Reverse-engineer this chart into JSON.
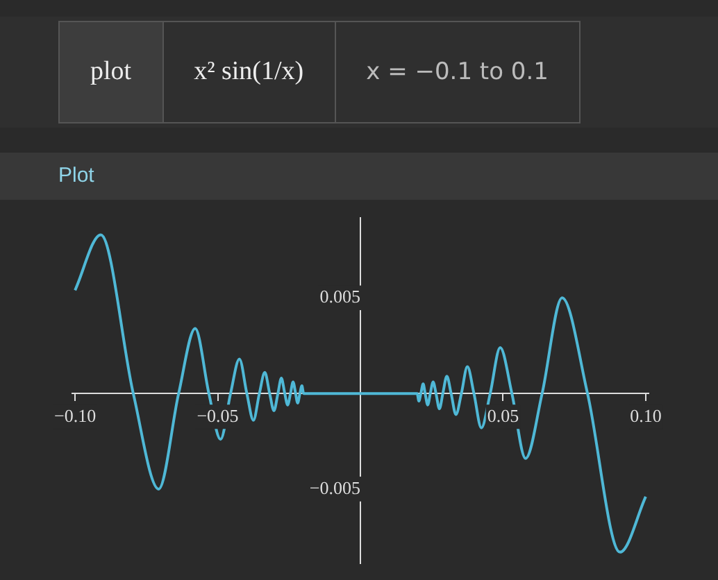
{
  "chart_data": {
    "type": "line",
    "title": "Plot",
    "annotations": [
      "plot",
      "x² sin(1/x)",
      "x = −0.1 to 0.1"
    ],
    "x": [
      -0.1,
      -0.091,
      -0.0796,
      -0.0707,
      -0.0637,
      -0.0579,
      -0.0531,
      -0.049,
      -0.0455,
      -0.0424,
      -0.0398,
      -0.0375,
      -0.0354,
      -0.0335,
      -0.0318,
      -0.0303,
      -0.0289,
      -0.0277,
      -0.0265,
      -0.0255,
      -0.0245,
      -0.0236,
      -0.0227,
      -0.022,
      -0.0212,
      -0.0205,
      -0.0199,
      0,
      0.0199,
      0.0205,
      0.0212,
      0.022,
      0.0227,
      0.0236,
      0.0245,
      0.0255,
      0.0265,
      0.0277,
      0.0289,
      0.0303,
      0.0318,
      0.0335,
      0.0354,
      0.0375,
      0.0398,
      0.0424,
      0.0455,
      0.049,
      0.0531,
      0.0579,
      0.0637,
      0.0707,
      0.0796,
      0.091,
      0.1
    ],
    "values": [
      0.0054,
      0.0083,
      0,
      -0.005,
      0,
      0.0034,
      0,
      -0.0024,
      0,
      0.0018,
      0,
      -0.0014,
      0,
      0.0011,
      0,
      -0.0009,
      0,
      0.0008,
      0,
      -0.0006,
      0,
      0.0006,
      0,
      -0.0005,
      0,
      0.0004,
      0,
      0,
      0,
      -0.0004,
      0,
      0.0005,
      0,
      -0.0006,
      0,
      0.0006,
      0,
      -0.0008,
      0,
      0.0009,
      0,
      -0.0011,
      0,
      0.0014,
      0,
      -0.0018,
      0,
      0.0024,
      0,
      -0.0034,
      0,
      0.005,
      0,
      -0.0083,
      -0.0054
    ],
    "color": "#4fb8d6",
    "xlim": [
      -0.101,
      0.101
    ],
    "ylim": [
      -0.0089,
      0.0092
    ],
    "xticks": [
      {
        "value": -0.1,
        "label": "−0.10"
      },
      {
        "value": -0.05,
        "label": "−0.05"
      },
      {
        "value": 0.05,
        "label": "0.05"
      },
      {
        "value": 0.1,
        "label": "0.10"
      }
    ],
    "yticks": [
      0.005,
      {
        "value": -0.005,
        "label": "−0.005"
      }
    ],
    "grid": false,
    "legend": false,
    "marker": "none"
  }
}
